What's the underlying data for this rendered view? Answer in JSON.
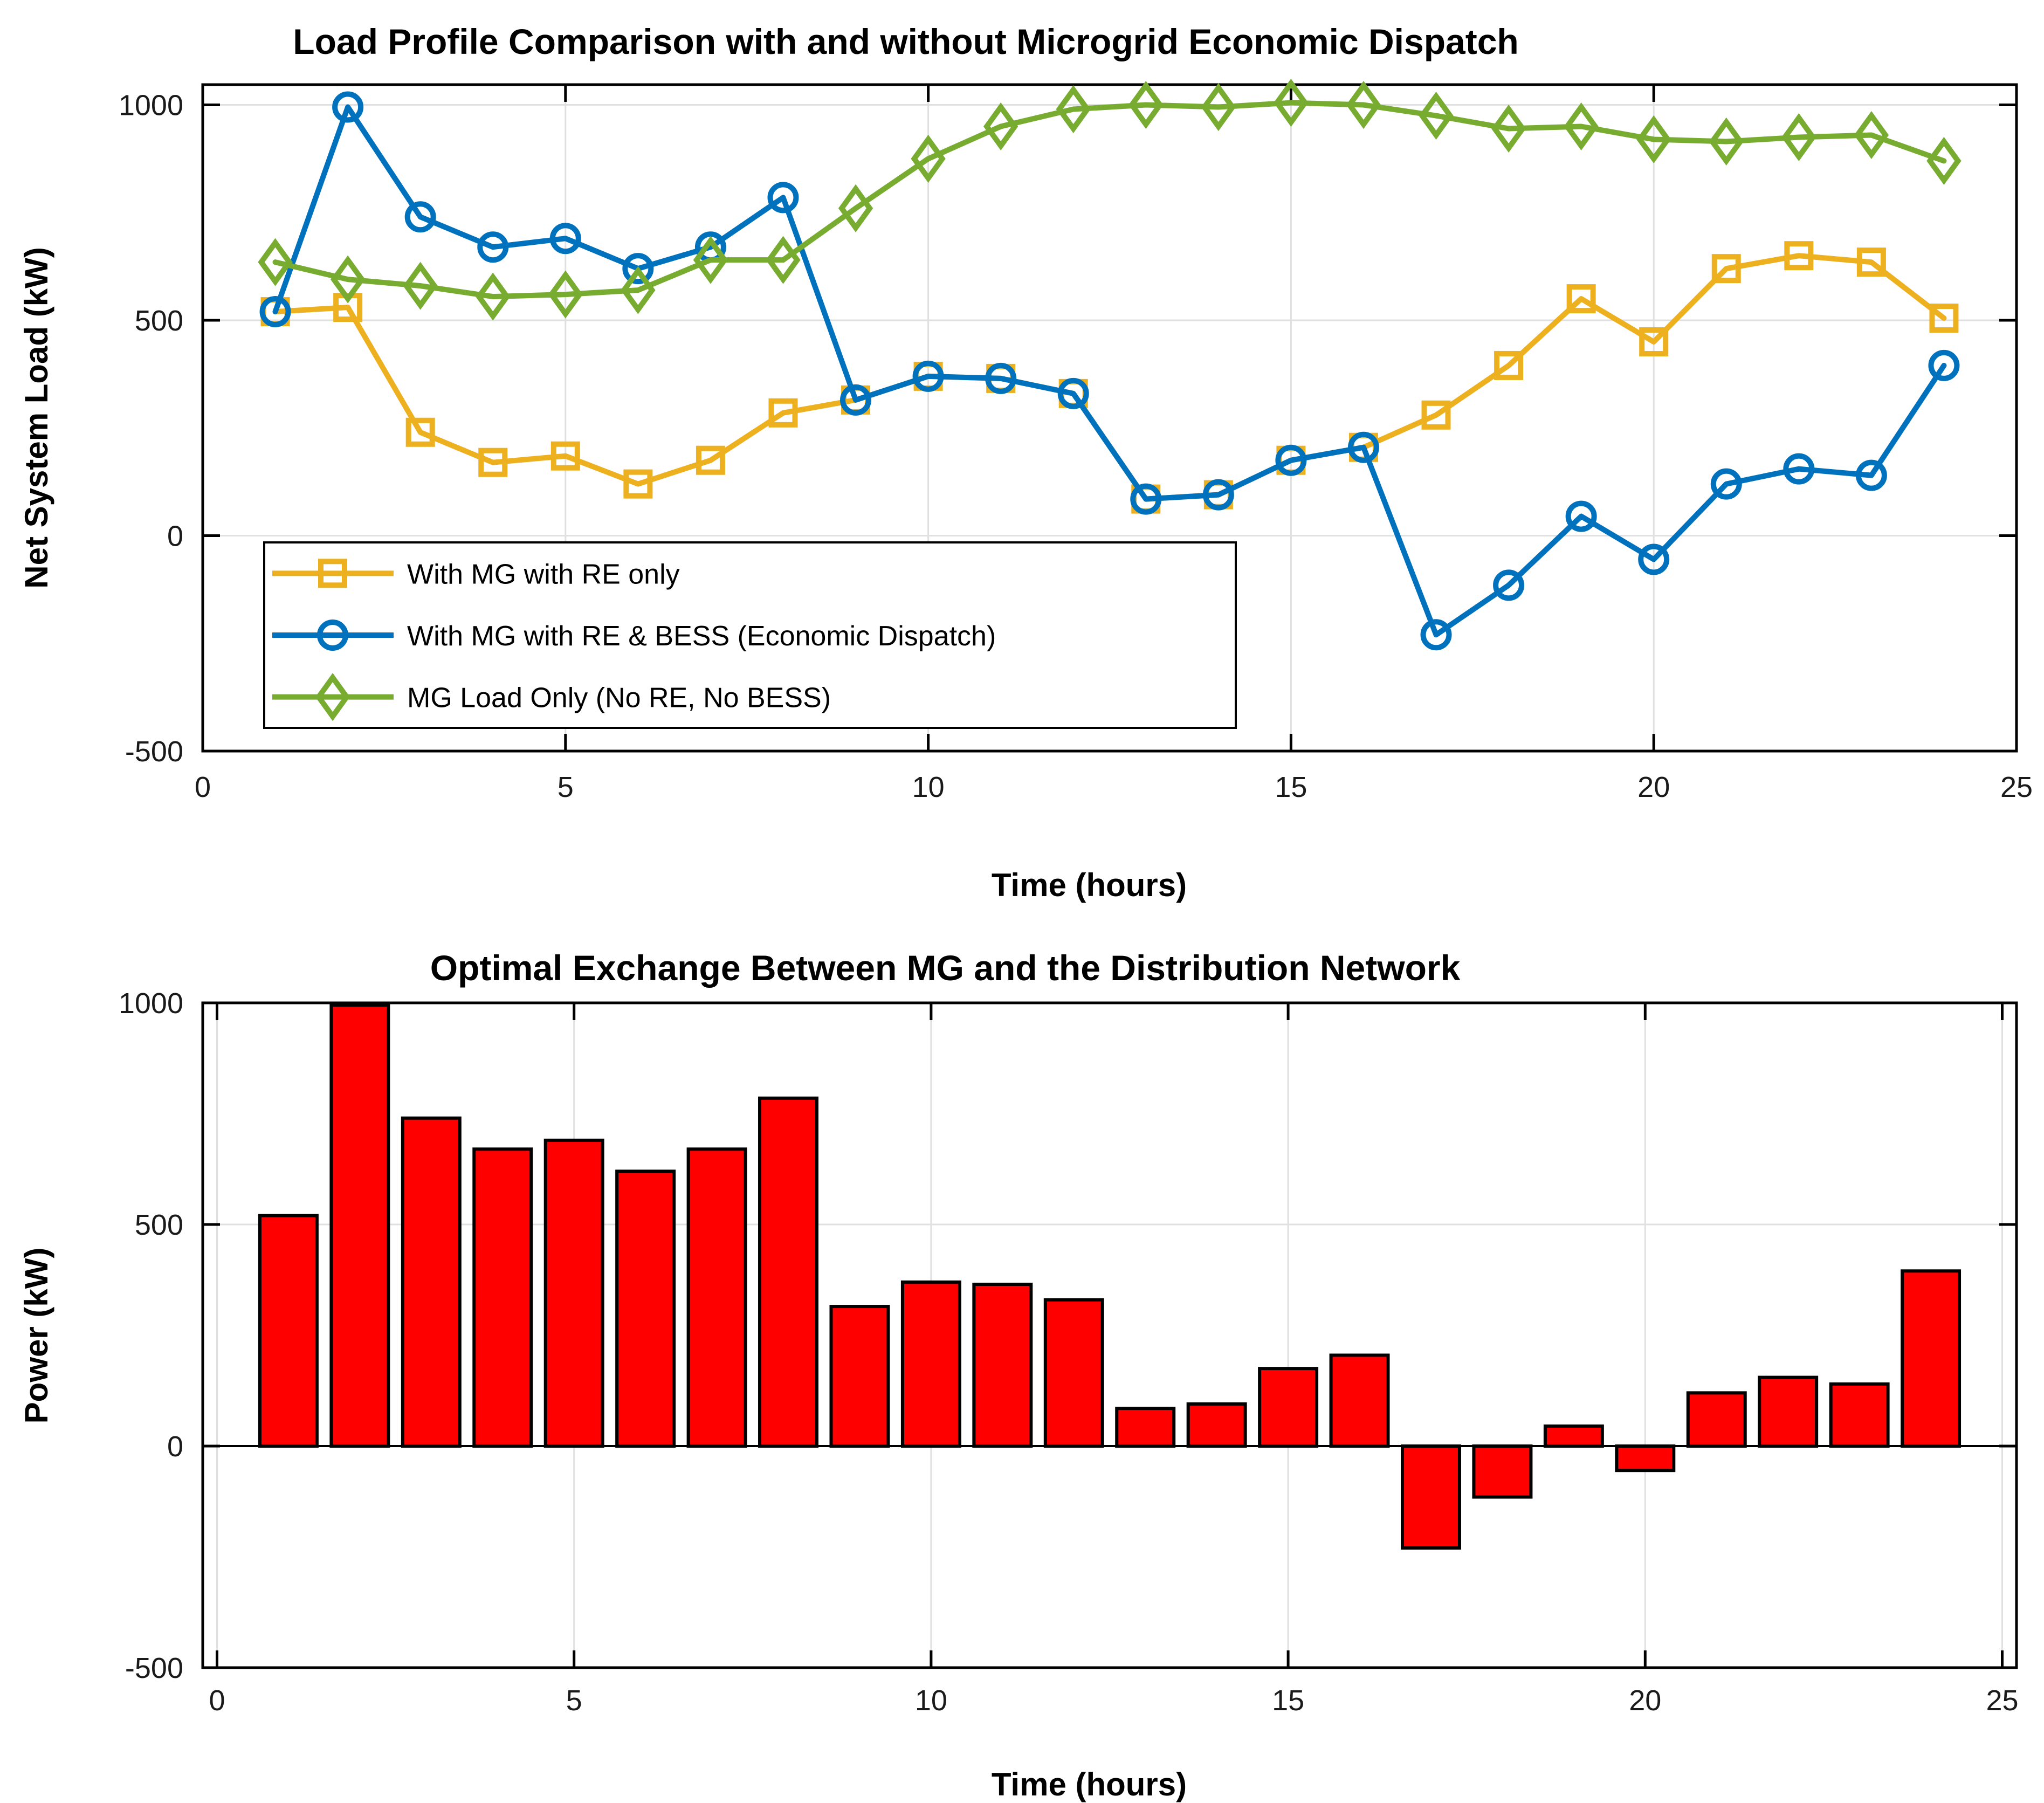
{
  "figure": {
    "background": "#FFFFFF",
    "frame_color": "#000000",
    "grid_color": "#E0E0E0",
    "tick_label_color": "#1A1A1A"
  },
  "chart_data": [
    {
      "type": "line",
      "title": "Load Profile Comparison with and without Microgrid Economic Dispatch",
      "xlabel": "Time (hours)",
      "ylabel": "Net System Load (kW)",
      "xlim": [
        0,
        25
      ],
      "ylim": [
        -500,
        1050
      ],
      "xticks": [
        0,
        5,
        10,
        15,
        20,
        25
      ],
      "yticks": [
        -500,
        0,
        500,
        1000
      ],
      "grid": true,
      "legend_position": "lower left",
      "x": [
        1,
        2,
        3,
        4,
        5,
        6,
        7,
        8,
        9,
        10,
        11,
        12,
        13,
        14,
        15,
        16,
        17,
        18,
        19,
        20,
        21,
        22,
        23,
        24
      ],
      "series": [
        {
          "name": "With MG with RE only",
          "color": "#EDB120",
          "marker": "square",
          "values": [
            520,
            530,
            240,
            170,
            185,
            120,
            175,
            285,
            315,
            370,
            365,
            330,
            85,
            95,
            175,
            205,
            280,
            395,
            550,
            450,
            620,
            650,
            635,
            505
          ]
        },
        {
          "name": "With MG with RE & BESS (Economic Dispatch)",
          "color": "#0072BD",
          "marker": "circle",
          "values": [
            520,
            995,
            740,
            670,
            690,
            620,
            670,
            785,
            315,
            370,
            365,
            330,
            85,
            95,
            175,
            205,
            -230,
            -115,
            45,
            -55,
            120,
            155,
            140,
            395
          ]
        },
        {
          "name": "MG Load Only (No RE, No BESS)",
          "color": "#77AC30",
          "marker": "diamond",
          "values": [
            635,
            595,
            580,
            555,
            560,
            570,
            640,
            640,
            760,
            875,
            950,
            990,
            1000,
            995,
            1005,
            1000,
            975,
            945,
            950,
            920,
            915,
            925,
            930,
            870
          ]
        }
      ]
    },
    {
      "type": "bar",
      "title": "Optimal Exchange Between MG and the Distribution Network",
      "xlabel": "Time (hours)",
      "ylabel": "Power (kW)",
      "xlim": [
        0,
        25
      ],
      "ylim": [
        -500,
        1000
      ],
      "xticks": [
        0,
        5,
        10,
        15,
        20,
        25
      ],
      "yticks": [
        -500,
        0,
        500,
        1000
      ],
      "grid": true,
      "bar_color": "#FF0000",
      "bar_edge_color": "#000000",
      "bar_width": 0.8,
      "x": [
        1,
        2,
        3,
        4,
        5,
        6,
        7,
        8,
        9,
        10,
        11,
        12,
        13,
        14,
        15,
        16,
        17,
        18,
        19,
        20,
        21,
        22,
        23,
        24
      ],
      "values": [
        520,
        995,
        740,
        670,
        690,
        620,
        670,
        785,
        315,
        370,
        365,
        330,
        85,
        95,
        175,
        205,
        -230,
        -115,
        45,
        -55,
        120,
        155,
        140,
        395
      ]
    }
  ]
}
